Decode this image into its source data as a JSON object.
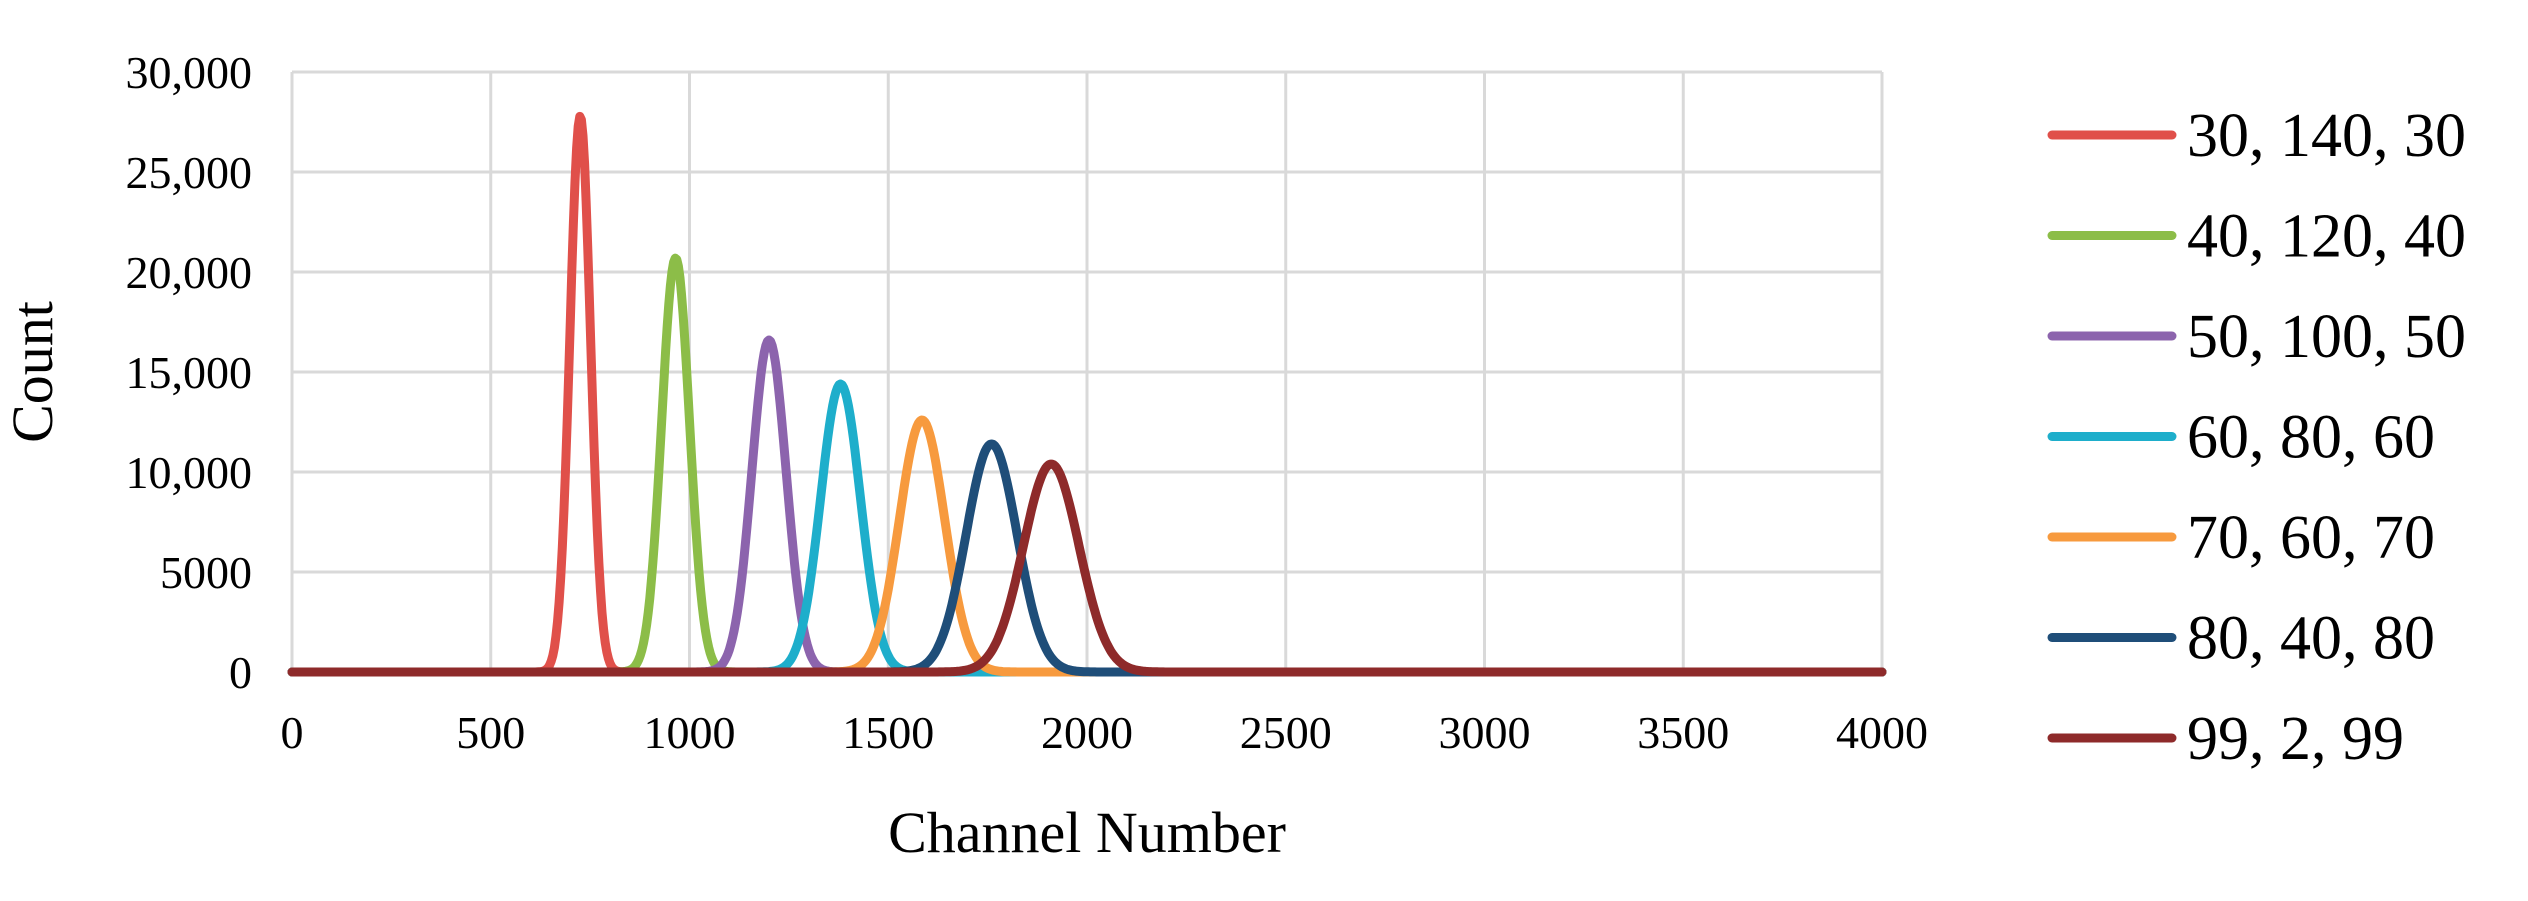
{
  "chart_data": {
    "type": "line",
    "xlabel": "Channel Number",
    "ylabel": "Count",
    "xlim": [
      0,
      4000
    ],
    "ylim": [
      0,
      30000
    ],
    "x_ticks": [
      0,
      500,
      1000,
      1500,
      2000,
      2500,
      3000,
      3500,
      4000
    ],
    "x_tick_labels": [
      "0",
      "500",
      "1000",
      "1500",
      "2000",
      "2500",
      "3000",
      "3500",
      "4000"
    ],
    "y_ticks": [
      0,
      5000,
      10000,
      15000,
      20000,
      25000,
      30000
    ],
    "y_tick_labels": [
      "0",
      "5000",
      "10,000",
      "15,000",
      "20,000",
      "25,000",
      "30,000"
    ],
    "grid": true,
    "legend_position": "right",
    "series": [
      {
        "name": "30, 140, 30",
        "color": "#e0504a",
        "peak_x": 725,
        "peak_y": 27800,
        "sigma": 26
      },
      {
        "name": "40, 120, 40",
        "color": "#8cbd48",
        "peak_x": 965,
        "peak_y": 20700,
        "sigma": 35
      },
      {
        "name": "50, 100, 50",
        "color": "#8c64ad",
        "peak_x": 1200,
        "peak_y": 16600,
        "sigma": 43
      },
      {
        "name": "60, 80, 60",
        "color": "#1eaecb",
        "peak_x": 1380,
        "peak_y": 14400,
        "sigma": 50
      },
      {
        "name": "70, 60, 70",
        "color": "#f79a3e",
        "peak_x": 1585,
        "peak_y": 12600,
        "sigma": 57
      },
      {
        "name": "80, 40, 80",
        "color": "#1f4e79",
        "peak_x": 1760,
        "peak_y": 11400,
        "sigma": 64
      },
      {
        "name": "99, 2, 99",
        "color": "#8e2a2a",
        "peak_x": 1910,
        "peak_y": 10400,
        "sigma": 70
      }
    ]
  }
}
